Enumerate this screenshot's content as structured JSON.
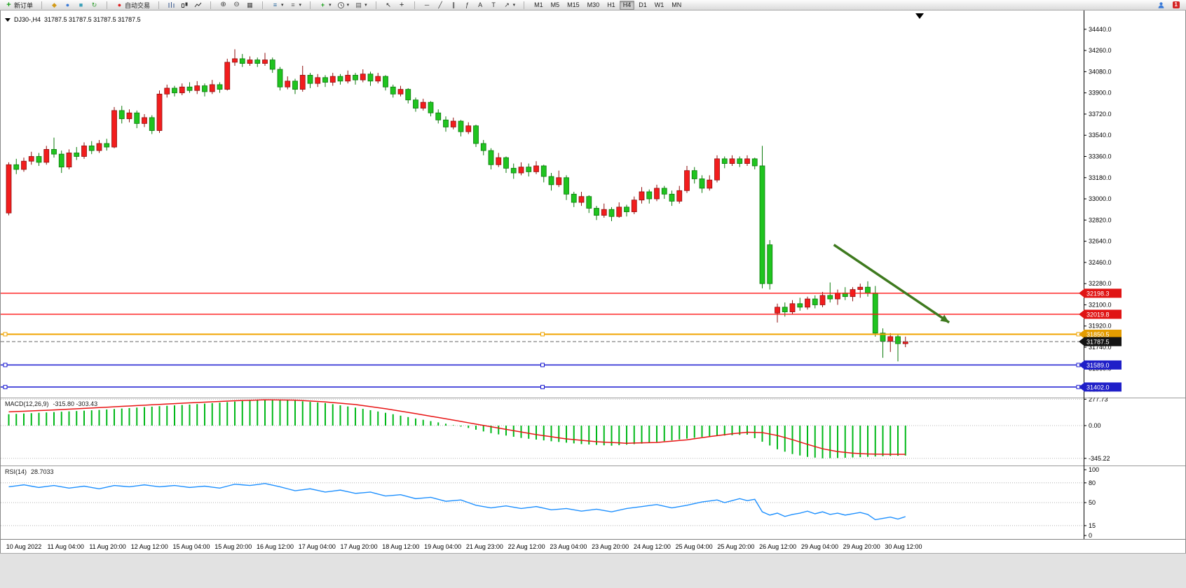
{
  "toolbar": {
    "new_order_label": "新订单",
    "auto_trading_label": "自动交易",
    "timeframes": [
      "M1",
      "M5",
      "M15",
      "M30",
      "H1",
      "H4",
      "D1",
      "W1",
      "MN"
    ],
    "active_timeframe": "H4",
    "notification_count": "1"
  },
  "chart": {
    "symbol": "DJ30-,H4",
    "ohlc": "31787.5 31787.5 31787.5 31787.5"
  },
  "indicators": {
    "macd_label": "MACD(12,26,9)",
    "macd_values": "-315.80 -303.43",
    "rsi_label": "RSI(14)",
    "rsi_value": "28.7033"
  },
  "chart_data": {
    "type": "candlestick",
    "symbol": "DJ30-",
    "timeframe": "H4",
    "colors": {
      "up": "#f21d1d",
      "up_edge": "#8f0f0f",
      "down": "#1fc41f",
      "down_edge": "#0b7a0b",
      "macd_hist": "#00b818",
      "macd_signal": "#e81414",
      "rsi_line": "#1e90ff",
      "arrow": "#3e7a1e"
    },
    "price_axis": {
      "max": 34540,
      "min": 31330
    },
    "price_ticks": [
      34440,
      34260,
      34080,
      33900,
      33720,
      33540,
      33360,
      33180,
      33000,
      32820,
      32640,
      32460,
      32280,
      32100,
      31920,
      31740,
      31560,
      31380
    ],
    "candles": [
      [
        32880,
        33310,
        32860,
        33290
      ],
      [
        33290,
        33340,
        33210,
        33250
      ],
      [
        33250,
        33350,
        33230,
        33320
      ],
      [
        33320,
        33400,
        33290,
        33360
      ],
      [
        33360,
        33390,
        33280,
        33310
      ],
      [
        33310,
        33450,
        33290,
        33420
      ],
      [
        33420,
        33520,
        33350,
        33380
      ],
      [
        33380,
        33410,
        33220,
        33270
      ],
      [
        33270,
        33420,
        33250,
        33390
      ],
      [
        33390,
        33440,
        33330,
        33360
      ],
      [
        33360,
        33480,
        33340,
        33450
      ],
      [
        33450,
        33490,
        33380,
        33410
      ],
      [
        33410,
        33500,
        33390,
        33470
      ],
      [
        33470,
        33510,
        33410,
        33440
      ],
      [
        33440,
        33780,
        33430,
        33750
      ],
      [
        33750,
        33790,
        33640,
        33680
      ],
      [
        33680,
        33760,
        33650,
        33730
      ],
      [
        33730,
        33750,
        33600,
        33640
      ],
      [
        33640,
        33720,
        33610,
        33690
      ],
      [
        33690,
        33710,
        33550,
        33580
      ],
      [
        33580,
        33920,
        33560,
        33890
      ],
      [
        33890,
        33970,
        33860,
        33940
      ],
      [
        33940,
        33960,
        33870,
        33900
      ],
      [
        33900,
        33980,
        33880,
        33950
      ],
      [
        33950,
        33990,
        33900,
        33920
      ],
      [
        33920,
        34000,
        33890,
        33960
      ],
      [
        33960,
        33980,
        33870,
        33910
      ],
      [
        33910,
        34010,
        33890,
        33970
      ],
      [
        33970,
        33990,
        33900,
        33930
      ],
      [
        33930,
        34190,
        33920,
        34160
      ],
      [
        34160,
        34270,
        34130,
        34190
      ],
      [
        34190,
        34230,
        34120,
        34150
      ],
      [
        34150,
        34210,
        34130,
        34180
      ],
      [
        34180,
        34200,
        34120,
        34150
      ],
      [
        34150,
        34240,
        34130,
        34180
      ],
      [
        34180,
        34200,
        34070,
        34100
      ],
      [
        34100,
        34120,
        33920,
        33950
      ],
      [
        33950,
        34040,
        33930,
        34000
      ],
      [
        34000,
        34020,
        33890,
        33930
      ],
      [
        33930,
        34130,
        33910,
        34050
      ],
      [
        34050,
        34070,
        33940,
        33980
      ],
      [
        33980,
        34060,
        33950,
        34030
      ],
      [
        34030,
        34050,
        33950,
        33990
      ],
      [
        33990,
        34070,
        33960,
        34040
      ],
      [
        34040,
        34060,
        33970,
        34000
      ],
      [
        34000,
        34090,
        33980,
        34050
      ],
      [
        34050,
        34070,
        33970,
        34010
      ],
      [
        34010,
        34100,
        33990,
        34060
      ],
      [
        34060,
        34080,
        33960,
        34000
      ],
      [
        34000,
        34070,
        33980,
        34040
      ],
      [
        34040,
        34050,
        33920,
        33950
      ],
      [
        33950,
        33970,
        33860,
        33890
      ],
      [
        33890,
        33960,
        33870,
        33930
      ],
      [
        33930,
        33940,
        33810,
        33840
      ],
      [
        33840,
        33860,
        33740,
        33770
      ],
      [
        33770,
        33850,
        33750,
        33820
      ],
      [
        33820,
        33830,
        33700,
        33730
      ],
      [
        33730,
        33760,
        33640,
        33670
      ],
      [
        33670,
        33700,
        33570,
        33610
      ],
      [
        33610,
        33690,
        33590,
        33660
      ],
      [
        33660,
        33670,
        33530,
        33570
      ],
      [
        33570,
        33650,
        33550,
        33620
      ],
      [
        33620,
        33630,
        33440,
        33470
      ],
      [
        33470,
        33500,
        33370,
        33410
      ],
      [
        33410,
        33430,
        33250,
        33290
      ],
      [
        33290,
        33390,
        33270,
        33350
      ],
      [
        33350,
        33360,
        33220,
        33260
      ],
      [
        33260,
        33300,
        33170,
        33220
      ],
      [
        33220,
        33310,
        33200,
        33270
      ],
      [
        33270,
        33300,
        33190,
        33230
      ],
      [
        33230,
        33320,
        33210,
        33280
      ],
      [
        33280,
        33290,
        33140,
        33190
      ],
      [
        33190,
        33220,
        33070,
        33120
      ],
      [
        33120,
        33240,
        33100,
        33180
      ],
      [
        33180,
        33200,
        32990,
        33040
      ],
      [
        33040,
        33060,
        32930,
        32970
      ],
      [
        32970,
        33060,
        32940,
        33020
      ],
      [
        33020,
        33030,
        32880,
        32920
      ],
      [
        32920,
        32940,
        32820,
        32860
      ],
      [
        32860,
        32960,
        32840,
        32910
      ],
      [
        32910,
        32930,
        32810,
        32850
      ],
      [
        32850,
        32970,
        32840,
        32930
      ],
      [
        32930,
        32950,
        32850,
        32890
      ],
      [
        32890,
        33020,
        32870,
        32990
      ],
      [
        32990,
        33100,
        32960,
        33060
      ],
      [
        33060,
        33080,
        32960,
        33000
      ],
      [
        33000,
        33120,
        32980,
        33090
      ],
      [
        33090,
        33110,
        33000,
        33040
      ],
      [
        33040,
        33070,
        32940,
        32980
      ],
      [
        32980,
        33110,
        32960,
        33070
      ],
      [
        33070,
        33280,
        33050,
        33240
      ],
      [
        33240,
        33270,
        33130,
        33170
      ],
      [
        33170,
        33200,
        33050,
        33090
      ],
      [
        33090,
        33200,
        33070,
        33160
      ],
      [
        33160,
        33370,
        33140,
        33340
      ],
      [
        33340,
        33360,
        33260,
        33300
      ],
      [
        33300,
        33370,
        33280,
        33340
      ],
      [
        33340,
        33360,
        33270,
        33300
      ],
      [
        33300,
        33370,
        33280,
        33340
      ],
      [
        33340,
        33350,
        33250,
        33280
      ],
      [
        33280,
        33450,
        32240,
        32280
      ],
      [
        32610,
        32650,
        32230,
        32280
      ],
      [
        32030,
        32110,
        31950,
        32080
      ],
      [
        32080,
        32120,
        32000,
        32040
      ],
      [
        32040,
        32140,
        32020,
        32110
      ],
      [
        32110,
        32160,
        32050,
        32080
      ],
      [
        32080,
        32170,
        32060,
        32150
      ],
      [
        32150,
        32180,
        32070,
        32100
      ],
      [
        32100,
        32210,
        32080,
        32180
      ],
      [
        32180,
        32290,
        32120,
        32150
      ],
      [
        32150,
        32230,
        32100,
        32200
      ],
      [
        32200,
        32250,
        32140,
        32170
      ],
      [
        32170,
        32250,
        32130,
        32230
      ],
      [
        32230,
        32280,
        32160,
        32250
      ],
      [
        32250,
        32300,
        32170,
        32200
      ],
      [
        32200,
        32260,
        31830,
        31860
      ],
      [
        31860,
        31900,
        31650,
        31790
      ],
      [
        31790,
        31860,
        31700,
        31830
      ],
      [
        31830,
        31850,
        31620,
        31770
      ],
      [
        31770,
        31830,
        31740,
        31787.5
      ]
    ],
    "hlines": [
      {
        "price": 32198.3,
        "label": "32198.3",
        "color": "#ff1414",
        "tag": "#e01414",
        "width": 1.3,
        "markers": false
      },
      {
        "price": 32019.8,
        "label": "32019.8",
        "color": "#ff1414",
        "tag": "#e01414",
        "width": 1.3,
        "markers": false
      },
      {
        "price": 31850.5,
        "label": "31850.5",
        "color": "#f0a400",
        "tag": "#e49c00",
        "width": 2,
        "markers": true
      },
      {
        "price": 31589.0,
        "label": "31589.0",
        "color": "#1818d0",
        "tag": "#1f1fc8",
        "width": 1.5,
        "markers": true
      },
      {
        "price": 31402.0,
        "label": "31402.0",
        "color": "#1818d0",
        "tag": "#1f1fc8",
        "width": 1.5,
        "markers": true
      }
    ],
    "current_price": {
      "price": 31787.5,
      "label": "31787.5",
      "tag": "#141414",
      "color": "#666666"
    },
    "trend_arrow": {
      "bar1": 109.5,
      "price1": 32610,
      "bar2": 124.8,
      "price2": 31950
    },
    "macd": {
      "axis": [
        277.73,
        0,
        -345.22
      ],
      "hist_points": [
        [
          0,
          120
        ],
        [
          4,
          135
        ],
        [
          8,
          150
        ],
        [
          12,
          165
        ],
        [
          16,
          185
        ],
        [
          20,
          205
        ],
        [
          24,
          222
        ],
        [
          28,
          242
        ],
        [
          32,
          265
        ],
        [
          35,
          277
        ],
        [
          38,
          262
        ],
        [
          42,
          238
        ],
        [
          46,
          190
        ],
        [
          50,
          135
        ],
        [
          54,
          75
        ],
        [
          58,
          20
        ],
        [
          61,
          -25
        ],
        [
          64,
          -80
        ],
        [
          68,
          -130
        ],
        [
          72,
          -165
        ],
        [
          76,
          -195
        ],
        [
          80,
          -212
        ],
        [
          84,
          -190
        ],
        [
          88,
          -155
        ],
        [
          92,
          -120
        ],
        [
          95,
          -105
        ],
        [
          98,
          -95
        ],
        [
          100,
          -170
        ],
        [
          102,
          -250
        ],
        [
          104,
          -300
        ],
        [
          106,
          -330
        ],
        [
          108,
          -345
        ],
        [
          110,
          -342
        ],
        [
          113,
          -333
        ],
        [
          116,
          -322
        ],
        [
          119,
          -316
        ]
      ],
      "signal_points": [
        [
          0,
          145
        ],
        [
          6,
          165
        ],
        [
          12,
          190
        ],
        [
          18,
          215
        ],
        [
          24,
          240
        ],
        [
          30,
          262
        ],
        [
          34,
          272
        ],
        [
          38,
          268
        ],
        [
          42,
          250
        ],
        [
          46,
          222
        ],
        [
          50,
          178
        ],
        [
          54,
          126
        ],
        [
          58,
          72
        ],
        [
          62,
          16
        ],
        [
          66,
          -40
        ],
        [
          70,
          -95
        ],
        [
          74,
          -140
        ],
        [
          78,
          -170
        ],
        [
          82,
          -186
        ],
        [
          86,
          -178
        ],
        [
          90,
          -150
        ],
        [
          93,
          -116
        ],
        [
          96,
          -86
        ],
        [
          98,
          -70
        ],
        [
          100,
          -74
        ],
        [
          102,
          -104
        ],
        [
          104,
          -148
        ],
        [
          106,
          -198
        ],
        [
          108,
          -244
        ],
        [
          110,
          -274
        ],
        [
          112,
          -291
        ],
        [
          114,
          -299
        ],
        [
          116,
          -302
        ],
        [
          119,
          -303
        ]
      ]
    },
    "rsi": {
      "axis": [
        100,
        80,
        50,
        15,
        0
      ],
      "levels": [
        80,
        50,
        15
      ],
      "points": [
        [
          0,
          74
        ],
        [
          2,
          77
        ],
        [
          4,
          73
        ],
        [
          6,
          76
        ],
        [
          8,
          72
        ],
        [
          10,
          75
        ],
        [
          12,
          71
        ],
        [
          14,
          76
        ],
        [
          16,
          74
        ],
        [
          18,
          77
        ],
        [
          20,
          74
        ],
        [
          22,
          76
        ],
        [
          24,
          73
        ],
        [
          26,
          75
        ],
        [
          28,
          72
        ],
        [
          30,
          78
        ],
        [
          32,
          76
        ],
        [
          34,
          79
        ],
        [
          36,
          74
        ],
        [
          38,
          68
        ],
        [
          40,
          71
        ],
        [
          42,
          66
        ],
        [
          44,
          69
        ],
        [
          46,
          64
        ],
        [
          48,
          66
        ],
        [
          50,
          60
        ],
        [
          52,
          62
        ],
        [
          54,
          56
        ],
        [
          56,
          58
        ],
        [
          58,
          52
        ],
        [
          60,
          54
        ],
        [
          62,
          46
        ],
        [
          64,
          42
        ],
        [
          66,
          45
        ],
        [
          68,
          41
        ],
        [
          70,
          44
        ],
        [
          72,
          39
        ],
        [
          74,
          41
        ],
        [
          76,
          37
        ],
        [
          78,
          40
        ],
        [
          80,
          36
        ],
        [
          82,
          41
        ],
        [
          84,
          44
        ],
        [
          86,
          47
        ],
        [
          88,
          42
        ],
        [
          90,
          46
        ],
        [
          92,
          51
        ],
        [
          94,
          54
        ],
        [
          95,
          50
        ],
        [
          96,
          53
        ],
        [
          97,
          56
        ],
        [
          98,
          53
        ],
        [
          99,
          55
        ],
        [
          100,
          36
        ],
        [
          101,
          31
        ],
        [
          102,
          34
        ],
        [
          103,
          29
        ],
        [
          104,
          32
        ],
        [
          105,
          34
        ],
        [
          106,
          37
        ],
        [
          107,
          33
        ],
        [
          108,
          36
        ],
        [
          109,
          32
        ],
        [
          110,
          34
        ],
        [
          111,
          31
        ],
        [
          112,
          33
        ],
        [
          113,
          35
        ],
        [
          114,
          32
        ],
        [
          115,
          24
        ],
        [
          116,
          26
        ],
        [
          117,
          28
        ],
        [
          118,
          25
        ],
        [
          119,
          28.7
        ]
      ]
    },
    "time_labels": [
      "10 Aug 2022",
      "11 Aug 04:00",
      "11 Aug 20:00",
      "12 Aug 12:00",
      "15 Aug 04:00",
      "15 Aug 20:00",
      "16 Aug 12:00",
      "17 Aug 04:00",
      "17 Aug 20:00",
      "18 Aug 12:00",
      "19 Aug 04:00",
      "21 Aug 23:00",
      "22 Aug 12:00",
      "23 Aug 04:00",
      "23 Aug 20:00",
      "24 Aug 12:00",
      "25 Aug 04:00",
      "25 Aug 20:00",
      "26 Aug 12:00",
      "29 Aug 04:00",
      "29 Aug 20:00",
      "30 Aug 12:00"
    ]
  }
}
